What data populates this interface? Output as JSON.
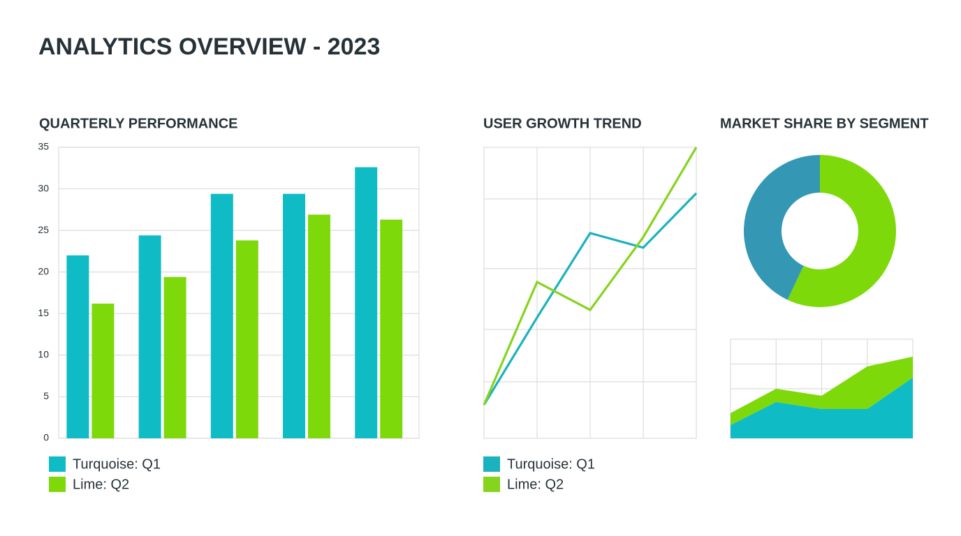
{
  "title": "ANALYTICS OVERVIEW - 2023",
  "chart_data": [
    {
      "type": "bar",
      "title": "QUARTERLY PERFORMANCE",
      "categories": [
        null,
        null,
        null,
        null,
        null
      ],
      "series": [
        {
          "name": "Turquoise: Q1",
          "color": "#0fbcc6",
          "values": [
            22,
            24.4,
            29.4,
            29.4,
            32.6
          ]
        },
        {
          "name": "Lime: Q2",
          "color": "#7ed90a",
          "values": [
            16.2,
            19.4,
            23.8,
            26.9,
            26.3
          ]
        }
      ],
      "ylim": [
        0,
        35
      ],
      "yticks": [
        0,
        5,
        10,
        15,
        20,
        25,
        30,
        35
      ],
      "grid": true
    },
    {
      "type": "line",
      "title": "USER GROWTH TREND",
      "categories": [
        null,
        null,
        null,
        null,
        null
      ],
      "series": [
        {
          "name": "Turquoise: Q1",
          "color": "#1ab2bd",
          "values": [
            11.5,
            41.5,
            70.5,
            65.5,
            84.2
          ]
        },
        {
          "name": "Lime: Q2",
          "color": "#86d41e",
          "values": [
            11.5,
            53.7,
            44.1,
            69.1,
            100
          ]
        }
      ],
      "ylim": [
        0,
        100
      ],
      "grid": true
    },
    {
      "type": "pie",
      "title": "MARKET SHARE BY SEGMENT",
      "categories": [
        null,
        null
      ],
      "values": [
        57,
        43
      ],
      "colors": [
        "#7ed90a",
        "#3498b5"
      ]
    },
    {
      "type": "area",
      "stacked": true,
      "categories": [
        null,
        null,
        null,
        null,
        null
      ],
      "series": [
        {
          "color": "#0fbcc6",
          "values": [
            13.4,
            36.6,
            29.6,
            29.6,
            61.3
          ]
        },
        {
          "color": "#7ed90a",
          "values": [
            12,
            13.4,
            13.4,
            42.9,
            21.1
          ]
        }
      ],
      "ylim": [
        0,
        100
      ],
      "grid": true
    }
  ]
}
